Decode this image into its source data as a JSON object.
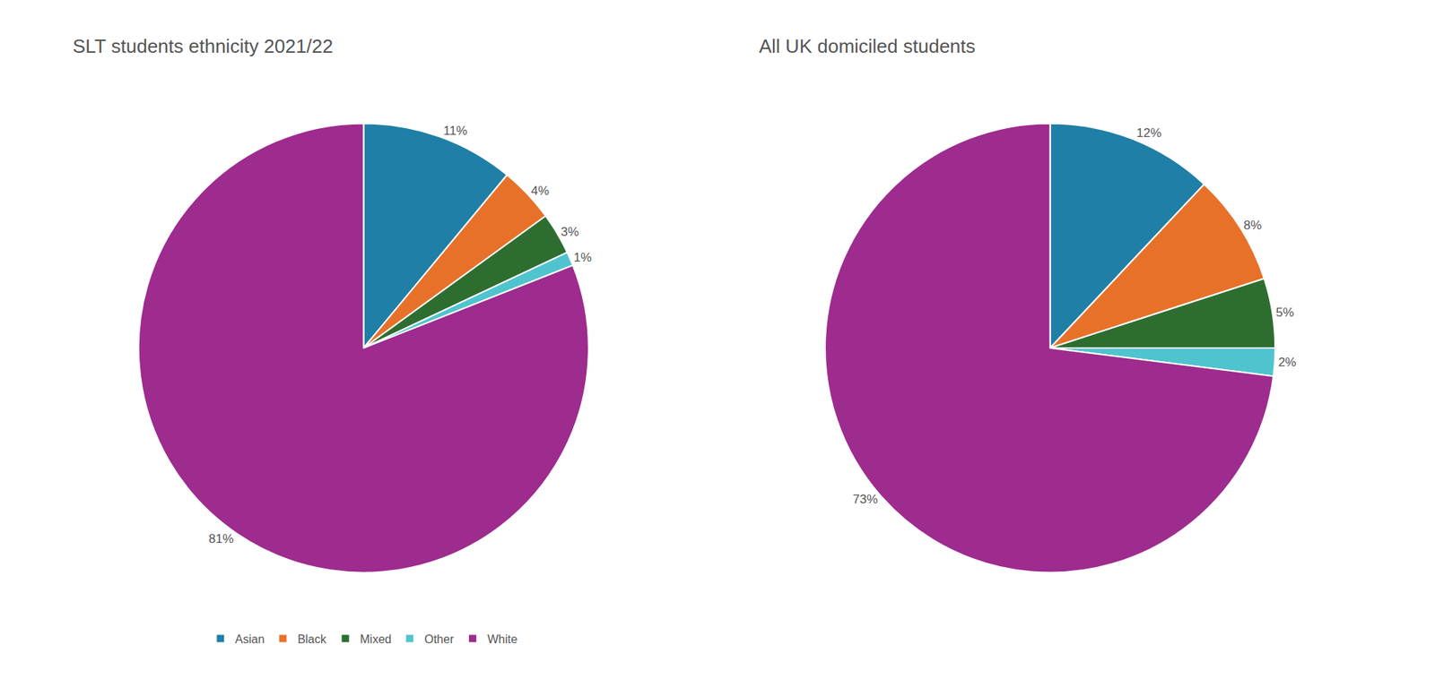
{
  "chart_data": [
    {
      "type": "pie",
      "title": "SLT students ethnicity 2021/22",
      "categories": [
        "Asian",
        "Black",
        "Mixed",
        "Other",
        "White"
      ],
      "values": [
        11,
        4,
        3,
        1,
        81
      ],
      "value_labels": [
        "11%",
        "4%",
        "3%",
        "1%",
        "81%"
      ],
      "colors": [
        "#1f7fa6",
        "#e8712a",
        "#2d6e30",
        "#4fc4cf",
        "#9e2b8e"
      ],
      "data_labels": true,
      "legend": "bottom"
    },
    {
      "type": "pie",
      "title": "All UK domiciled students",
      "categories": [
        "Asian",
        "Black",
        "Mixed",
        "Other",
        "White"
      ],
      "values": [
        12,
        8,
        5,
        2,
        73
      ],
      "value_labels": [
        "12%",
        "8%",
        "5%",
        "2%",
        "73%"
      ],
      "colors": [
        "#1f7fa6",
        "#e8712a",
        "#2d6e30",
        "#4fc4cf",
        "#9e2b8e"
      ],
      "data_labels": true,
      "legend": "bottom"
    }
  ]
}
